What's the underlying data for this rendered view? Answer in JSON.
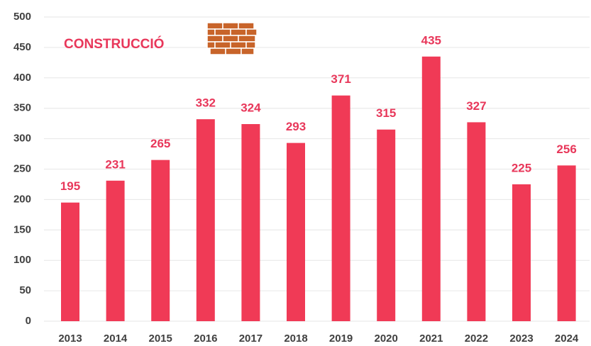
{
  "chart_data": {
    "type": "bar",
    "title": "CONSTRUCCIÓ",
    "categories": [
      "2013",
      "2014",
      "2015",
      "2016",
      "2017",
      "2018",
      "2019",
      "2020",
      "2021",
      "2022",
      "2023",
      "2024"
    ],
    "values": [
      195,
      231,
      265,
      332,
      324,
      293,
      371,
      315,
      435,
      327,
      225,
      256
    ],
    "color": "#f03a56",
    "ylim": [
      0,
      500
    ],
    "yticks": [
      0,
      50,
      100,
      150,
      200,
      250,
      300,
      350,
      400,
      450,
      500
    ],
    "grid": true
  }
}
